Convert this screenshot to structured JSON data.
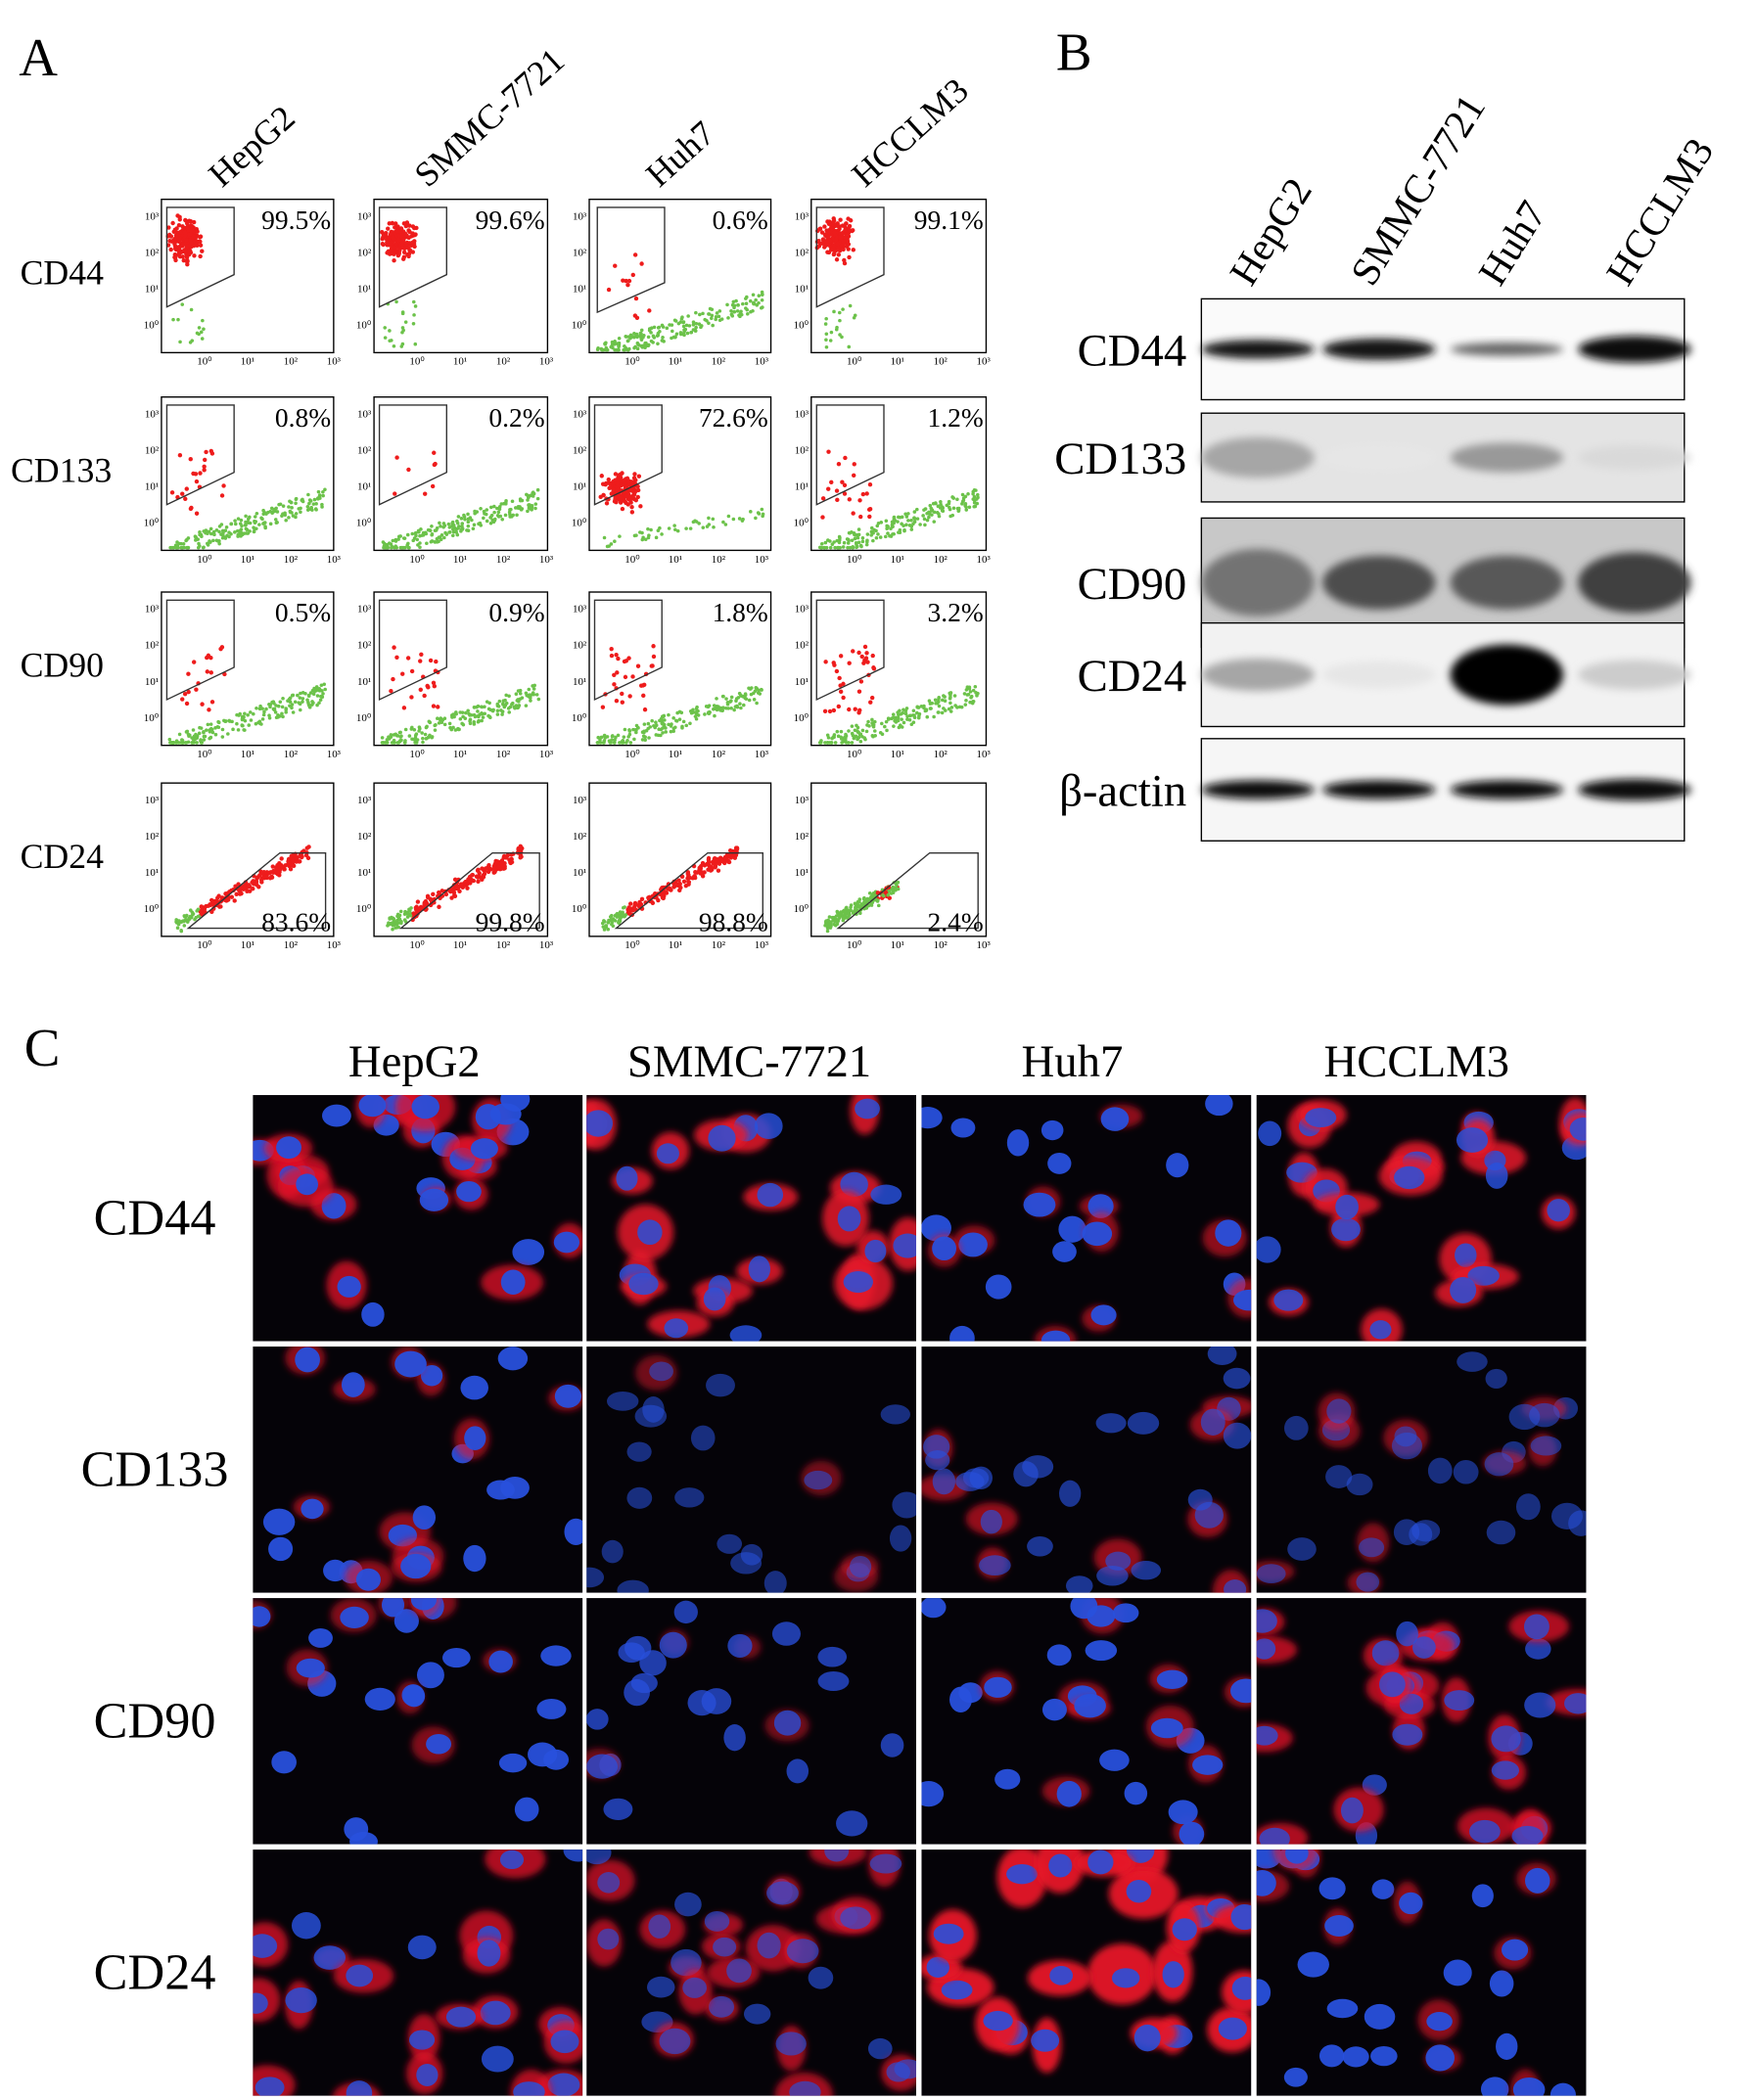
{
  "panel_a": {
    "label": "A",
    "columns": [
      "HepG2",
      "SMMC-7721",
      "Huh7",
      "HCCLM3"
    ],
    "axis_ticks": [
      "10⁰",
      "10¹",
      "10²",
      "10³"
    ],
    "rows": [
      {
        "marker": "CD44",
        "percents": [
          "99.5%",
          "99.6%",
          "0.6%",
          "99.1%"
        ]
      },
      {
        "marker": "CD133",
        "percents": [
          "0.8%",
          "0.2%",
          "72.6%",
          "1.2%"
        ]
      },
      {
        "marker": "CD90",
        "percents": [
          "0.5%",
          "0.9%",
          "1.8%",
          "3.2%"
        ]
      },
      {
        "marker": "CD24",
        "percents": [
          "83.6%",
          "99.8%",
          "98.8%",
          "2.4%"
        ]
      }
    ]
  },
  "panel_b": {
    "label": "B",
    "lanes": [
      "HepG2",
      "SMMC-7721",
      "Huh7",
      "HCCLM3"
    ],
    "rows": [
      "CD44",
      "CD133",
      "CD90",
      "CD24",
      "β-actin"
    ]
  },
  "panel_c": {
    "label": "C",
    "columns": [
      "HepG2",
      "SMMC-7721",
      "Huh7",
      "HCCLM3"
    ],
    "rows": [
      "CD44",
      "CD133",
      "CD90",
      "CD24"
    ]
  }
}
